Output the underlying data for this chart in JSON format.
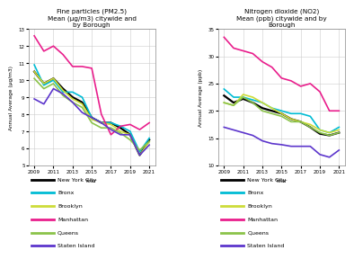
{
  "years": [
    2009,
    2010,
    2011,
    2012,
    2013,
    2014,
    2015,
    2016,
    2017,
    2018,
    2019,
    2020,
    2021
  ],
  "pm25": {
    "New York City": [
      10.5,
      9.8,
      10.1,
      9.5,
      9.0,
      8.7,
      7.8,
      7.5,
      7.5,
      7.2,
      6.8,
      5.6,
      6.5
    ],
    "Bronx": [
      10.9,
      9.7,
      10.0,
      9.3,
      9.3,
      9.0,
      7.8,
      7.5,
      7.5,
      7.3,
      7.0,
      5.8,
      6.6
    ],
    "Brooklyn": [
      10.5,
      9.8,
      10.1,
      9.4,
      8.9,
      8.6,
      7.7,
      7.5,
      7.4,
      7.0,
      6.8,
      5.6,
      6.4
    ],
    "Manhattan": [
      12.6,
      11.7,
      12.0,
      11.5,
      10.8,
      10.8,
      10.7,
      8.0,
      6.8,
      7.3,
      7.4,
      7.1,
      7.5
    ],
    "Queens": [
      10.1,
      9.5,
      9.8,
      9.1,
      8.7,
      8.4,
      7.5,
      7.2,
      7.2,
      6.9,
      6.5,
      5.9,
      6.4
    ],
    "Staten Island": [
      8.9,
      8.6,
      9.5,
      9.2,
      8.7,
      8.1,
      7.8,
      7.5,
      7.1,
      6.8,
      6.8,
      5.6,
      6.2
    ]
  },
  "no2": {
    "New York City": [
      22.8,
      21.5,
      22.2,
      21.5,
      20.5,
      20.0,
      19.5,
      18.5,
      18.0,
      17.0,
      15.8,
      15.5,
      16.0
    ],
    "Bronx": [
      24.0,
      22.5,
      22.5,
      22.0,
      21.5,
      20.5,
      20.0,
      19.5,
      19.5,
      19.0,
      16.5,
      16.0,
      17.0
    ],
    "Brooklyn": [
      21.5,
      21.0,
      23.0,
      22.5,
      21.5,
      20.5,
      19.5,
      18.5,
      18.0,
      17.5,
      16.5,
      16.0,
      16.5
    ],
    "Manhattan": [
      33.5,
      31.5,
      31.0,
      30.5,
      29.0,
      28.0,
      26.0,
      25.5,
      24.5,
      25.0,
      23.5,
      20.0,
      20.0
    ],
    "Queens": [
      21.5,
      21.0,
      22.5,
      21.5,
      20.0,
      19.5,
      19.0,
      18.0,
      18.0,
      17.0,
      16.0,
      15.5,
      16.0
    ],
    "Staten Island": [
      17.0,
      16.5,
      16.0,
      15.5,
      14.5,
      14.0,
      13.8,
      13.5,
      13.5,
      13.5,
      12.0,
      11.5,
      12.8
    ]
  },
  "colors": {
    "New York City": "#000000",
    "Bronx": "#00bcd4",
    "Brooklyn": "#cddc39",
    "Manhattan": "#e91e8c",
    "Queens": "#8bc34a",
    "Staten Island": "#5c35cc"
  },
  "pm25_title": "Fine particles (PM2.5)\nMean (μg/m3) citywide and\nby Borough",
  "no2_title": "Nitrogen dioxide (NO2)\nMean (ppb) citywide and by\nBorough",
  "pm25_ylabel": "Annual Average (μg/m3)",
  "no2_ylabel": "Annual Average (ppb)",
  "xlabel": "Year",
  "pm25_ylim": [
    5,
    13
  ],
  "no2_ylim": [
    10,
    35
  ],
  "pm25_yticks": [
    5,
    6,
    7,
    8,
    9,
    10,
    11,
    12,
    13
  ],
  "no2_yticks": [
    10,
    15,
    20,
    25,
    30,
    35
  ],
  "xticks": [
    2009,
    2011,
    2013,
    2015,
    2017,
    2019,
    2021
  ],
  "legend_order": [
    "New York City",
    "Bronx",
    "Brooklyn",
    "Manhattan",
    "Queens",
    "Staten Island"
  ]
}
